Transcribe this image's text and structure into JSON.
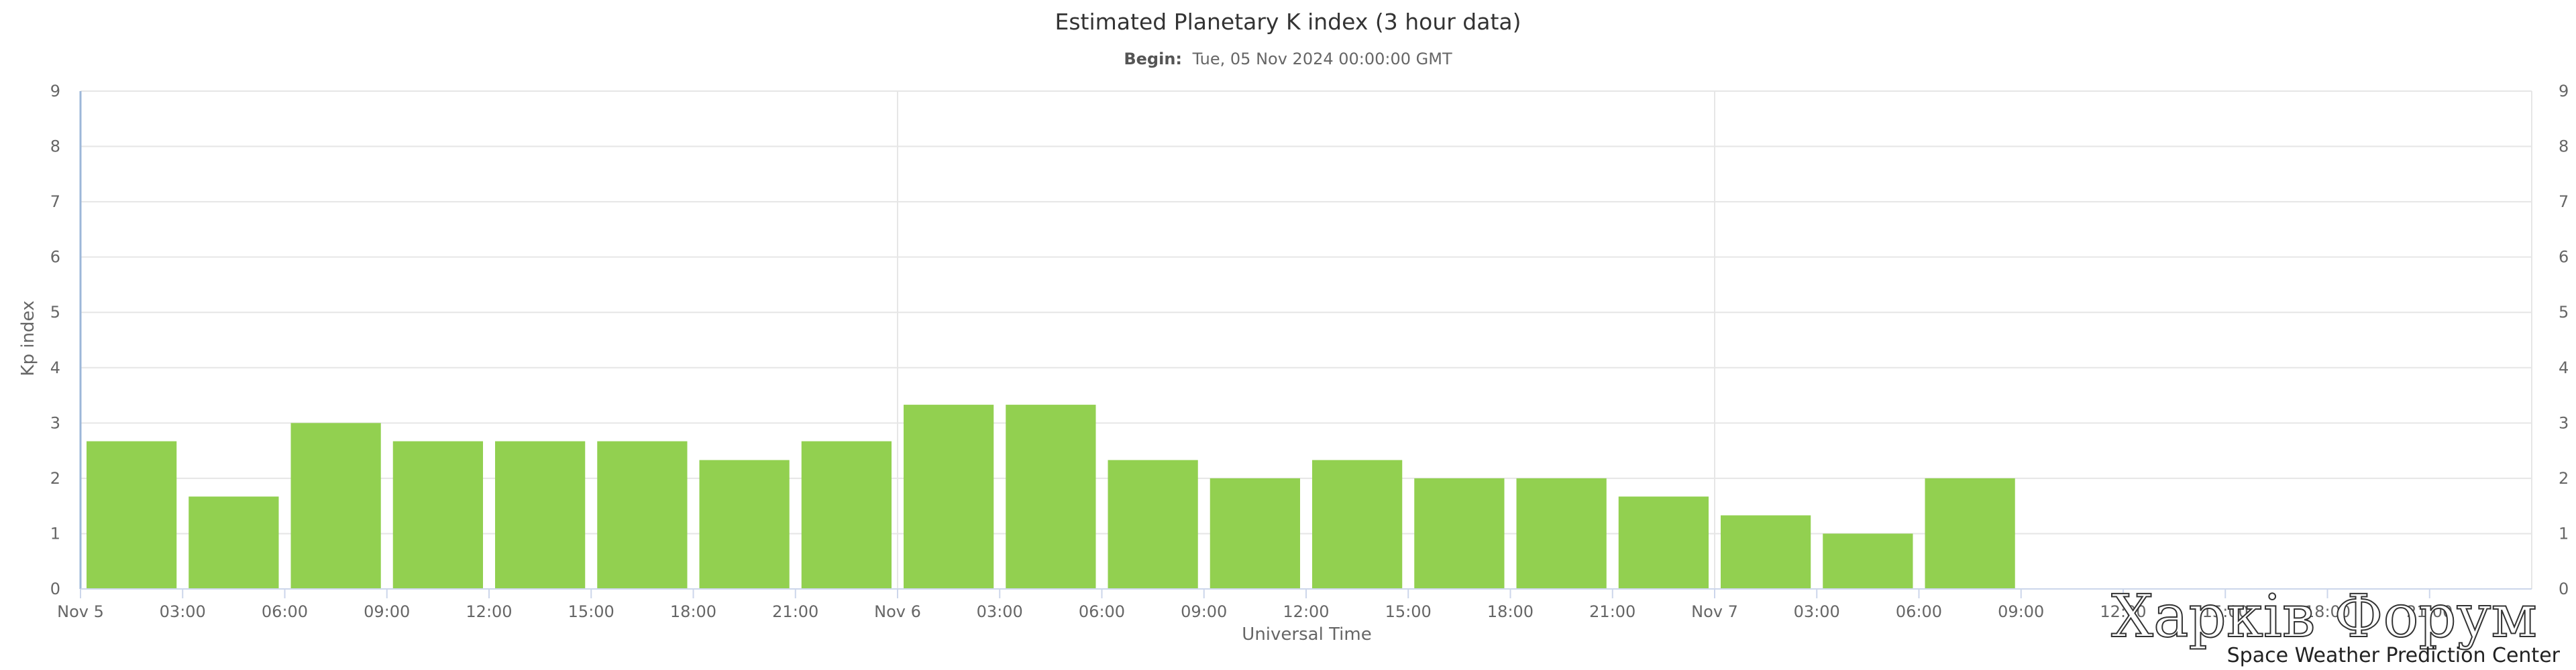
{
  "chart_data": {
    "type": "bar",
    "title": "Estimated Planetary K index (3 hour data)",
    "subtitle": {
      "label": "Begin:",
      "value": "Tue, 05 Nov 2024 00:00:00 GMT"
    },
    "xlabel": "Universal Time",
    "ylabel": "Kp index",
    "ylim": [
      0,
      9
    ],
    "y_ticks": [
      "0",
      "1",
      "2",
      "3",
      "4",
      "5",
      "6",
      "7",
      "8",
      "9"
    ],
    "x_range_hours": [
      0,
      72
    ],
    "x_ticks": [
      "Nov 5",
      "03:00",
      "06:00",
      "09:00",
      "12:00",
      "15:00",
      "18:00",
      "21:00",
      "Nov 6",
      "03:00",
      "06:00",
      "09:00",
      "12:00",
      "15:00",
      "18:00",
      "21:00",
      "Nov 7",
      "03:00",
      "06:00",
      "09:00",
      "12:00",
      "15:00",
      "18:00",
      "21:00"
    ],
    "values": [
      2.67,
      1.67,
      3.0,
      2.67,
      2.67,
      2.67,
      2.33,
      2.67,
      3.33,
      3.33,
      2.33,
      2.0,
      2.33,
      2.0,
      2.0,
      1.67,
      1.33,
      1.0,
      2.0
    ],
    "bar_color": "#92d050",
    "grid": true,
    "credit": "Space Weather Prediction Center"
  },
  "watermark": "Харків Форум"
}
